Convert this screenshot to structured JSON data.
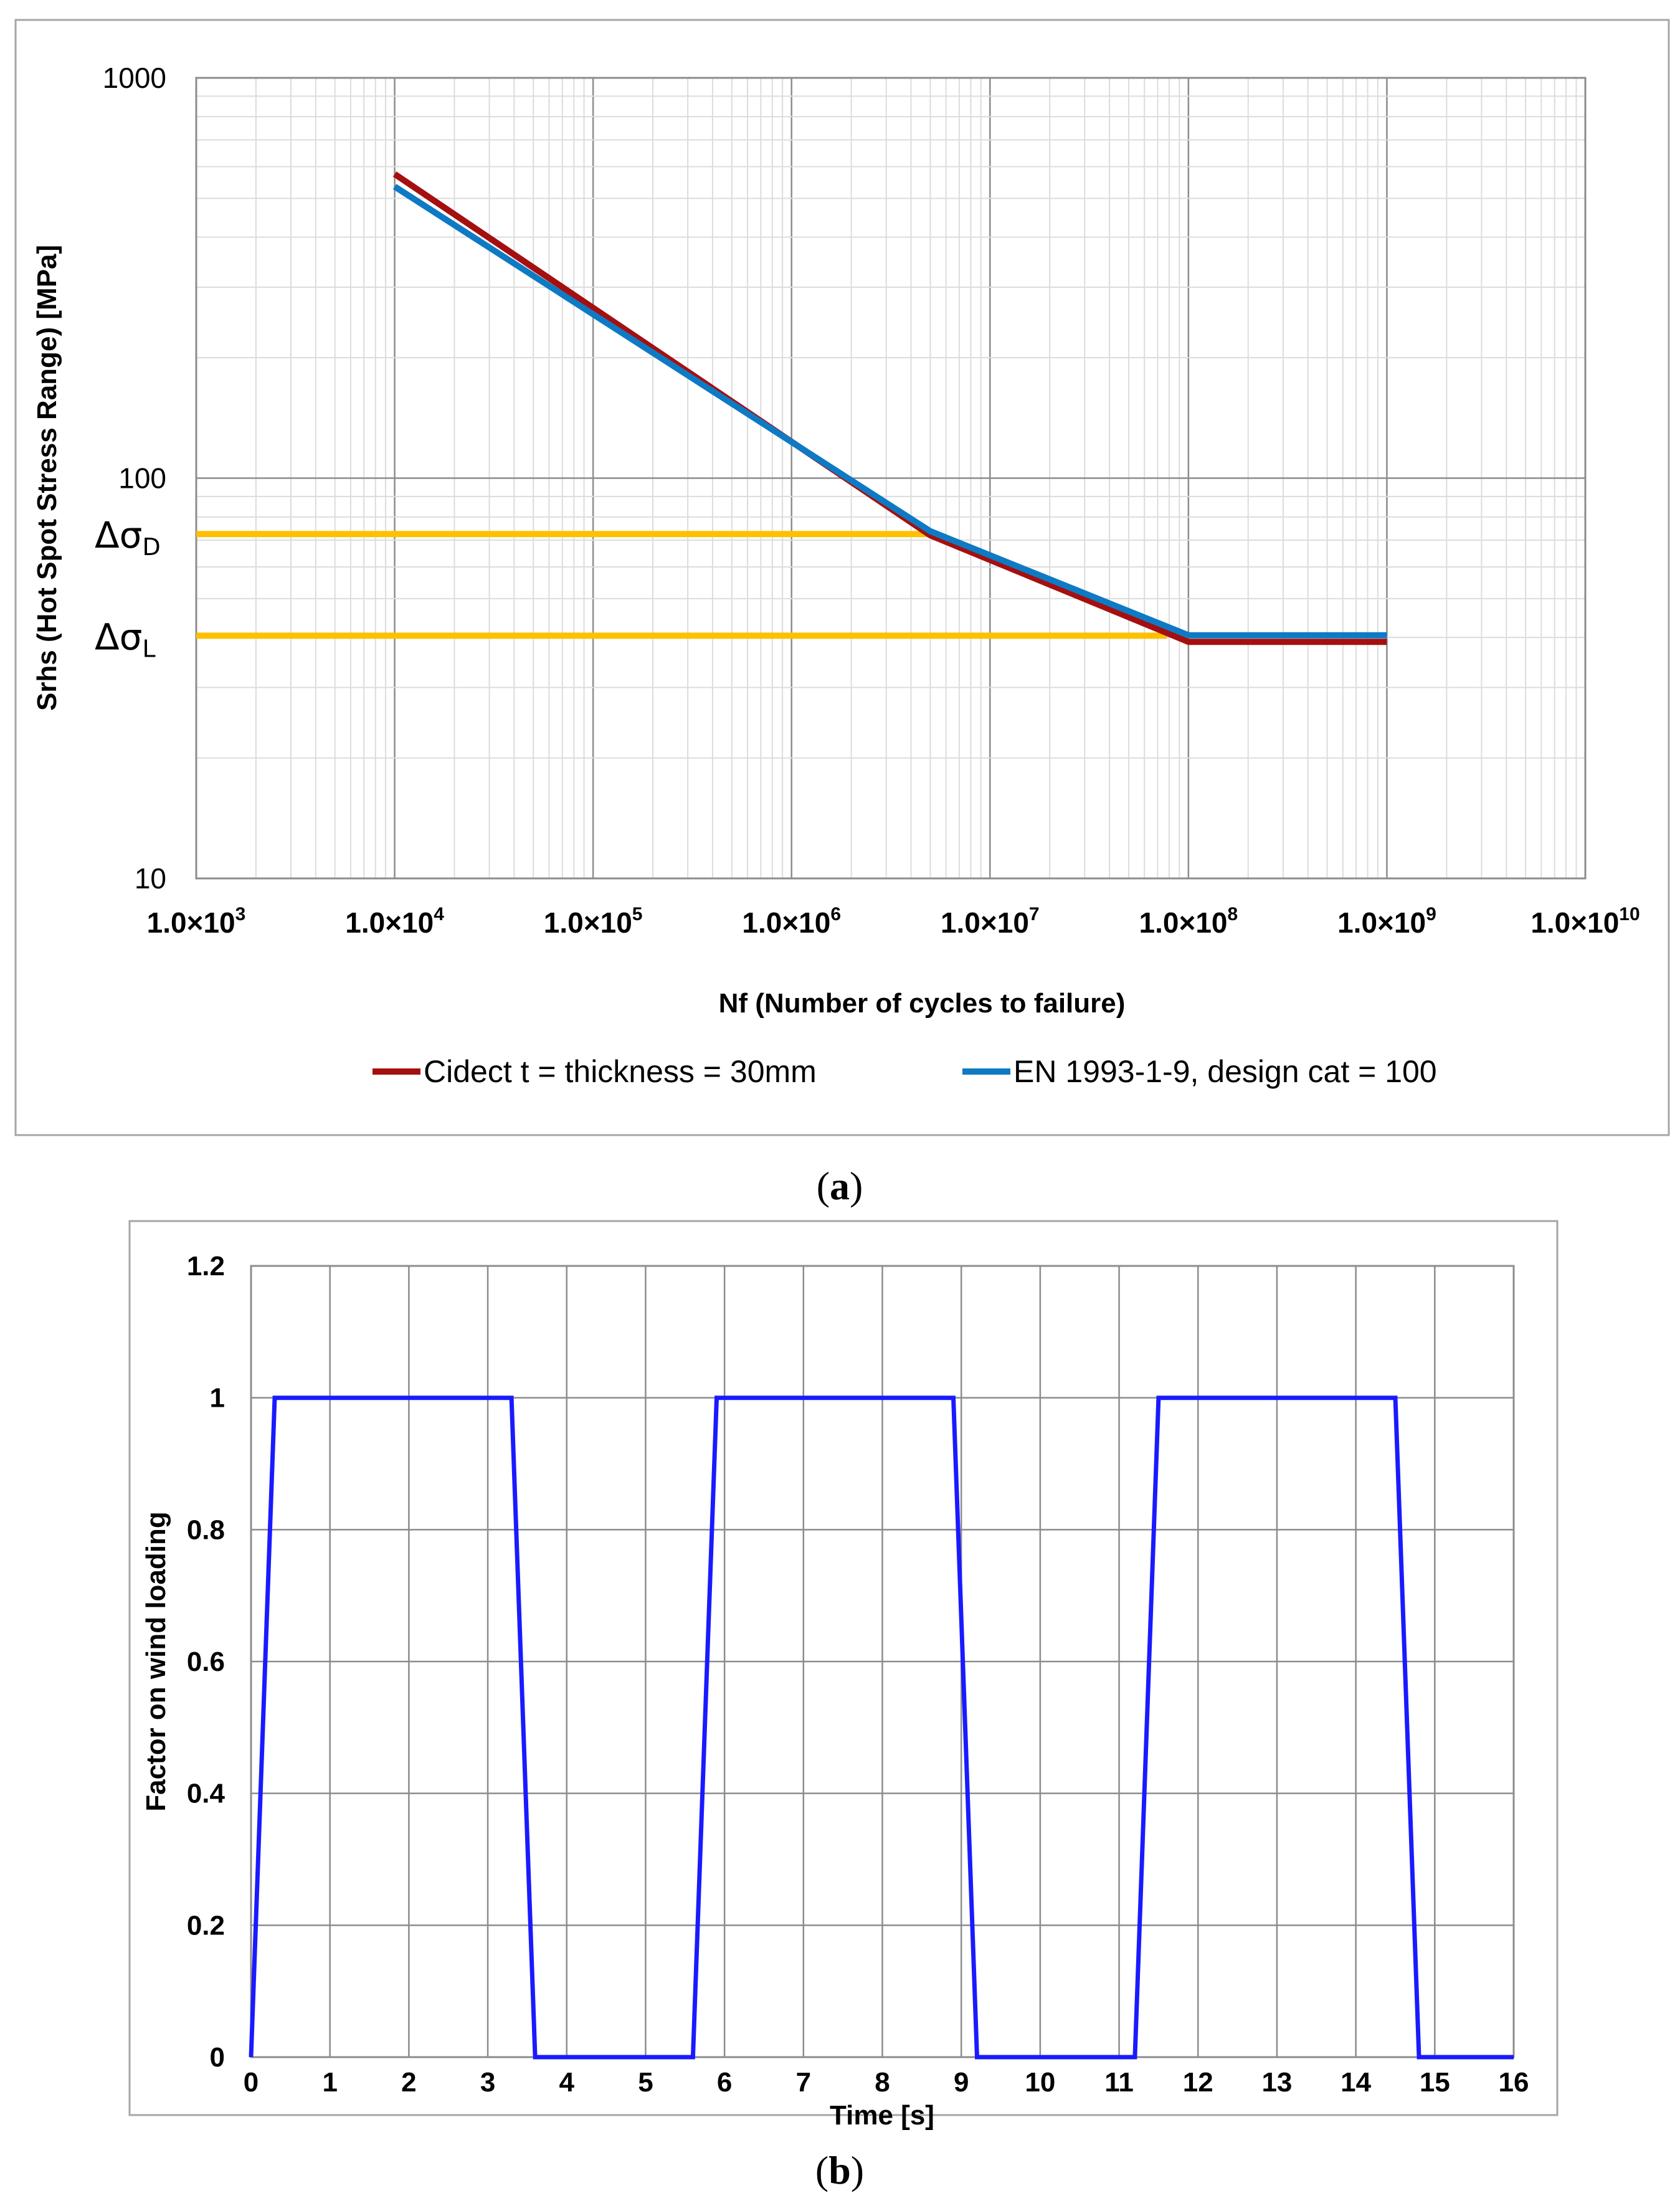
{
  "chart_data": [
    {
      "type": "line",
      "panel": "a",
      "xscale": "log",
      "yscale": "log",
      "xlabel": "Nf (Number of cycles to failure)",
      "ylabel": "Srhs (Hot Spot Stress Range) [MPa]",
      "xlim": [
        1000,
        10000000000
      ],
      "ylim": [
        10,
        1000
      ],
      "xticks": [
        {
          "value": 1000,
          "base": "1.0×10",
          "exp": "3"
        },
        {
          "value": 10000,
          "base": "1.0×10",
          "exp": "4"
        },
        {
          "value": 100000,
          "base": "1.0×10",
          "exp": "5"
        },
        {
          "value": 1000000,
          "base": "1.0×10",
          "exp": "6"
        },
        {
          "value": 10000000,
          "base": "1.0×10",
          "exp": "7"
        },
        {
          "value": 100000000,
          "base": "1.0×10",
          "exp": "8"
        },
        {
          "value": 1000000000,
          "base": "1.0×10",
          "exp": "9"
        },
        {
          "value": 10000000000,
          "base": "1.0×10",
          "exp": "10"
        }
      ],
      "yticks": [
        {
          "value": 10,
          "label": "10"
        },
        {
          "value": 100,
          "label": "100"
        },
        {
          "value": 1000,
          "label": "1000"
        }
      ],
      "series": [
        {
          "name": "Cidect t = thickness = 30mm",
          "color": "#a50f0f",
          "points": [
            [
              10000,
              575
            ],
            [
              5000000,
              72
            ],
            [
              100000000,
              39
            ],
            [
              1000000000,
              39
            ]
          ]
        },
        {
          "name": "EN 1993-1-9, design cat = 100",
          "color": "#0e7ac4",
          "points": [
            [
              10000,
              535
            ],
            [
              5000000,
              73.7
            ],
            [
              100000000,
              40.5
            ],
            [
              1000000000,
              40.5
            ]
          ]
        }
      ],
      "reference_lines": [
        {
          "name": "Δσ_D",
          "symbol": "Δσ",
          "subscript": "D",
          "y": 72.5,
          "x_from": 1000,
          "x_to": 5000000,
          "color": "#ffc000"
        },
        {
          "name": "Δσ_L",
          "symbol": "Δσ",
          "subscript": "L",
          "y": 40.4,
          "x_from": 1000,
          "x_to": 78000000,
          "color": "#ffc000"
        }
      ],
      "legend": "bottom",
      "caption": {
        "open": "(",
        "letter": "a",
        "close": ")"
      }
    },
    {
      "type": "line",
      "panel": "b",
      "xlabel": "Time [s]",
      "ylabel": "Factor on wind loading",
      "xlim": [
        0,
        16
      ],
      "ylim": [
        0,
        1.2
      ],
      "xticks": [
        "0",
        "1",
        "2",
        "3",
        "4",
        "5",
        "6",
        "7",
        "8",
        "9",
        "10",
        "11",
        "12",
        "13",
        "14",
        "15",
        "16"
      ],
      "yticks": [
        "0",
        "0.2",
        "0.4",
        "0.6",
        "0.8",
        "1",
        "1.2"
      ],
      "series": [
        {
          "name": "Factor on wind loading",
          "color": "#1a1aff",
          "points": [
            [
              0,
              0
            ],
            [
              0.3,
              1
            ],
            [
              3.3,
              1
            ],
            [
              3.6,
              0
            ],
            [
              5.6,
              0
            ],
            [
              5.9,
              1
            ],
            [
              8.9,
              1
            ],
            [
              9.2,
              0
            ],
            [
              11.2,
              0
            ],
            [
              11.5,
              1
            ],
            [
              14.5,
              1
            ],
            [
              14.8,
              0
            ],
            [
              16,
              0
            ]
          ]
        }
      ],
      "grid": true,
      "caption": {
        "open": "(",
        "letter": "b",
        "close": ")"
      }
    }
  ]
}
